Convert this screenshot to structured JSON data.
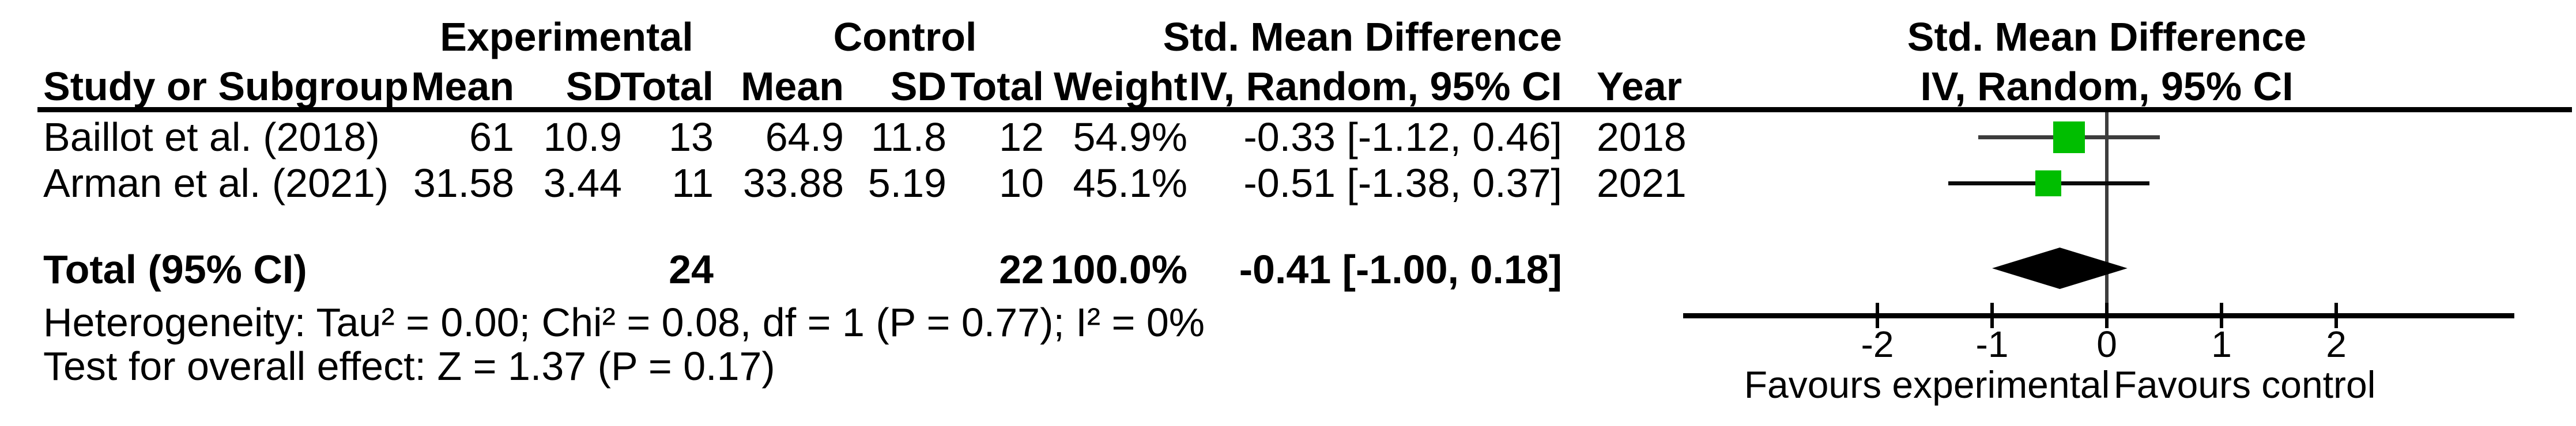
{
  "table": {
    "group_headers": {
      "experimental": "Experimental",
      "control": "Control",
      "smd": "Std. Mean Difference"
    },
    "columns": {
      "study": "Study or Subgroup",
      "mean": "Mean",
      "sd": "SD",
      "total": "Total",
      "weight": "Weight",
      "iv": "IV, Random, 95% CI",
      "year": "Year"
    },
    "rows": [
      {
        "study": "Baillot et al. (2018)",
        "mean_e": "61",
        "sd_e": "10.9",
        "total_e": "13",
        "mean_c": "64.9",
        "sd_c": "11.8",
        "total_c": "12",
        "weight": "54.9%",
        "ci": "-0.33 [-1.12, 0.46]",
        "year": "2018"
      },
      {
        "study": "Arman et al. (2021)",
        "mean_e": "31.58",
        "sd_e": "3.44",
        "total_e": "11",
        "mean_c": "33.88",
        "sd_c": "5.19",
        "total_c": "10",
        "weight": "45.1%",
        "ci": "-0.51 [-1.38, 0.37]",
        "year": "2021"
      }
    ],
    "total_row": {
      "label": "Total (95% CI)",
      "total_e": "24",
      "total_c": "22",
      "weight": "100.0%",
      "ci": "-0.41 [-1.00, 0.18]"
    },
    "heterogeneity": "Heterogeneity: Tau² = 0.00; Chi² = 0.08, df = 1 (P = 0.77); I² = 0%",
    "overall_effect": "Test for overall effect: Z = 1.37 (P = 0.17)"
  },
  "plot": {
    "header_line1": "Std. Mean Difference",
    "header_line2": "IV, Random, 95% CI",
    "favours_left": "Favours experimental",
    "favours_right": "Favours control",
    "marker_color": "#00BE00",
    "diamond_color": "#000000",
    "ci_line_colors": [
      "#3c3c3c",
      "#0a0a0a"
    ]
  },
  "chart_data": {
    "type": "forest",
    "effect_measure": "Std. Mean Difference, IV, Random, 95% CI",
    "studies": [
      {
        "name": "Baillot et al. (2018)",
        "year": 2018,
        "mean_e": 61,
        "sd_e": 10.9,
        "n_e": 13,
        "mean_c": 64.9,
        "sd_c": 11.8,
        "n_c": 12,
        "weight_pct": 54.9,
        "est": -0.33,
        "ci_low": -1.12,
        "ci_high": 0.46
      },
      {
        "name": "Arman et al. (2021)",
        "year": 2021,
        "mean_e": 31.58,
        "sd_e": 3.44,
        "n_e": 11,
        "mean_c": 33.88,
        "sd_c": 5.19,
        "n_c": 10,
        "weight_pct": 45.1,
        "est": -0.51,
        "ci_low": -1.38,
        "ci_high": 0.37
      }
    ],
    "total": {
      "n_e": 24,
      "n_c": 22,
      "weight_pct": 100.0,
      "est": -0.41,
      "ci_low": -1.0,
      "ci_high": 0.18
    },
    "heterogeneity": {
      "tau2": 0.0,
      "chi2": 0.08,
      "df": 1,
      "p": 0.77,
      "i2_pct": 0
    },
    "overall_effect": {
      "z": 1.37,
      "p": 0.17
    },
    "ticks": [
      -2,
      -1,
      0,
      1,
      2
    ],
    "axis_labels": {
      "left": "Favours experimental",
      "right": "Favours control"
    },
    "grid": false,
    "legend": false
  }
}
